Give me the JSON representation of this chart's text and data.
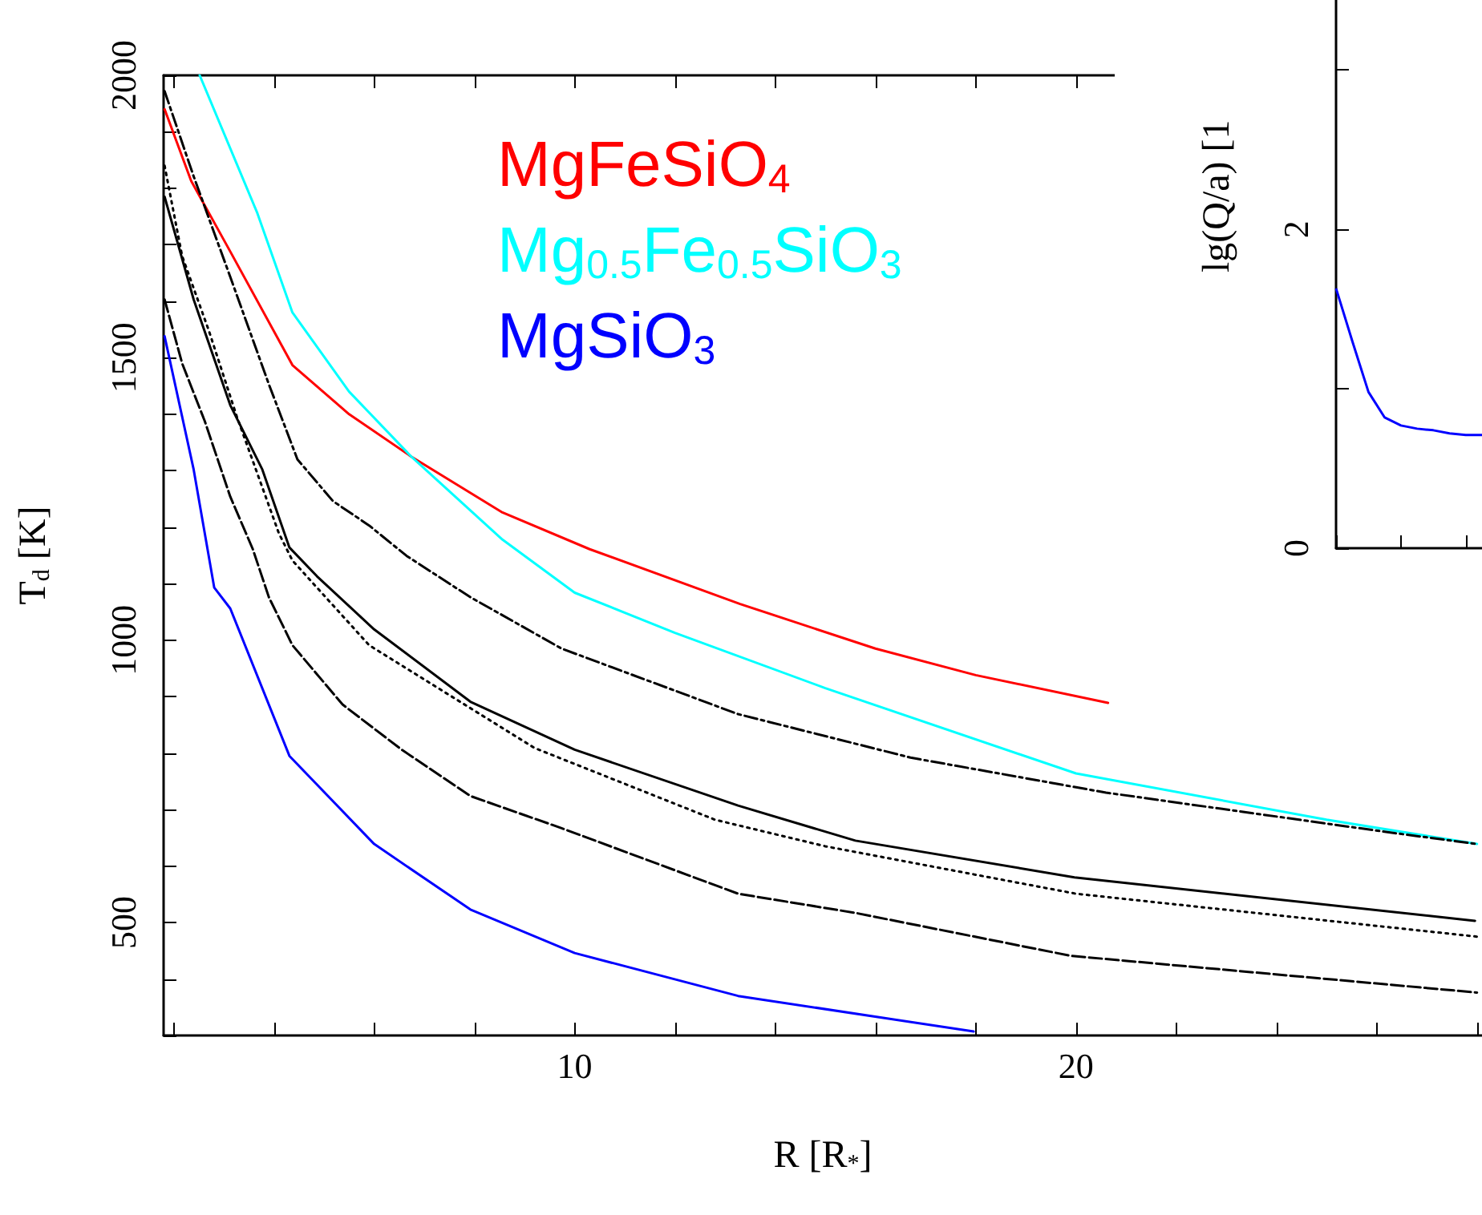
{
  "chart_data": [
    {
      "type": "line",
      "xlabel": "R [R$_{*}$]",
      "ylabel": "T$_{d}$ [K]",
      "xlim": [
        1.8,
        28.1
      ],
      "ylim": [
        300,
        2000
      ],
      "xticks": [
        {
          "value": 2,
          "label": null
        },
        {
          "value": 4,
          "label": null
        },
        {
          "value": 6,
          "label": null
        },
        {
          "value": 8,
          "label": null
        },
        10,
        {
          "value": 12,
          "label": null
        },
        {
          "value": 14,
          "label": null
        },
        {
          "value": 16,
          "label": null
        },
        {
          "value": 18,
          "label": null
        },
        20,
        {
          "value": 22,
          "label": null
        },
        {
          "value": 24,
          "label": null
        },
        {
          "value": 26,
          "label": null
        },
        {
          "value": 28,
          "label": null
        }
      ],
      "yticks": [
        {
          "value": 300,
          "label": null
        },
        {
          "value": 400,
          "label": null
        },
        500,
        {
          "value": 600,
          "label": null
        },
        {
          "value": 700,
          "label": null
        },
        {
          "value": 800,
          "label": null
        },
        {
          "value": 900,
          "label": null
        },
        1000,
        {
          "value": 1100,
          "label": null
        },
        {
          "value": 1200,
          "label": null
        },
        {
          "value": 1300,
          "label": null
        },
        {
          "value": 1400,
          "label": null
        },
        1500,
        {
          "value": 1600,
          "label": null
        },
        {
          "value": 1700,
          "label": null
        },
        {
          "value": 1800,
          "label": null
        },
        {
          "value": 1900,
          "label": null
        },
        2000
      ],
      "grid": false,
      "legend": "top",
      "marker": "none",
      "series": [
        {
          "name": "MgFeSiO$_{4}$",
          "color": "#ff0000",
          "line_style": "solid",
          "x": [
            1.82,
            2.35,
            3.13,
            4.37,
            5.5,
            6.74,
            8.56,
            10.3,
            13.3,
            16,
            18,
            20.64
          ],
          "values": [
            1940,
            1813,
            1688,
            1487,
            1400,
            1325,
            1226,
            1161,
            1064,
            985,
            938,
            889
          ]
        },
        {
          "name": "Mg$_{0.5}$Fe$_{0.5}$SiO$_{3}$",
          "color": "#00ffff",
          "line_style": "solid",
          "x": [
            2.52,
            3.67,
            4.37,
            5.5,
            6.74,
            8.56,
            10,
            12,
            15,
            20,
            25,
            28
          ],
          "values": [
            2000,
            1756,
            1580,
            1440,
            1325,
            1178,
            1084,
            1013,
            915,
            764,
            682,
            639
          ]
        },
        {
          "name": "MgSiO$_{3}$",
          "color": "#0000ff",
          "line_style": "solid",
          "x": [
            1.82,
            2.4,
            2.81,
            3.13,
            4.31,
            6,
            7.92,
            10,
            13.26,
            17.96
          ],
          "values": [
            1538,
            1302,
            1093,
            1056,
            795,
            639,
            523,
            446,
            370,
            307
          ]
        },
        {
          "color": "#000000",
          "line_style": "dashdot",
          "x": [
            1.82,
            2.4,
            3.13,
            3.9,
            4.47,
            5.18,
            5.9,
            6.65,
            7.92,
            9.74,
            13.26,
            16.7,
            20.6,
            26.3,
            28
          ],
          "values": [
            1972,
            1821,
            1643,
            1453,
            1320,
            1246,
            1203,
            1149,
            1076,
            985,
            869,
            792,
            730,
            659,
            639
          ]
        },
        {
          "color": "#000000",
          "line_style": "solid",
          "x": [
            1.82,
            2.4,
            3.13,
            3.77,
            4.31,
            4.86,
            6,
            7.92,
            10,
            13.26,
            15.6,
            19.97,
            27.96
          ],
          "values": [
            1785,
            1603,
            1416,
            1302,
            1164,
            1113,
            1019,
            891,
            806,
            707,
            645,
            580,
            503
          ]
        },
        {
          "color": "#000000",
          "line_style": "dotted",
          "x": [
            1.82,
            2.17,
            2.71,
            3.26,
            4.1,
            4.37,
            5.9,
            9.2,
            12.8,
            15,
            20,
            28
          ],
          "values": [
            1840,
            1680,
            1546,
            1396,
            1189,
            1141,
            991,
            809,
            682,
            635,
            551,
            475
          ]
        },
        {
          "color": "#000000",
          "line_style": "dashed",
          "x": [
            1.82,
            2.17,
            2.62,
            3.13,
            3.58,
            3.9,
            4.37,
            5.37,
            6.55,
            7.92,
            9.74,
            13.26,
            15.6,
            19.9,
            28
          ],
          "values": [
            1603,
            1490,
            1388,
            1254,
            1161,
            1076,
            991,
            886,
            806,
            724,
            667,
            551,
            517,
            441,
            376
          ]
        }
      ]
    },
    {
      "type": "line",
      "ylabel": "lg(Q/a) [1",
      "categories": [
        null,
        null,
        null,
        null,
        null,
        null,
        null,
        null,
        null,
        null
      ],
      "ylim": [
        0,
        3.44
      ],
      "yticks": [
        0,
        {
          "value": 1,
          "label": null
        },
        2,
        {
          "value": 3,
          "label": null
        }
      ],
      "tick_labels": "y",
      "grid": false,
      "marker": "none",
      "series": [
        {
          "color": "#0000ff",
          "values": [
            1.63,
            1.3,
            0.98,
            0.82,
            0.77,
            0.75,
            0.74,
            0.72,
            0.71,
            0.71
          ]
        }
      ]
    }
  ]
}
